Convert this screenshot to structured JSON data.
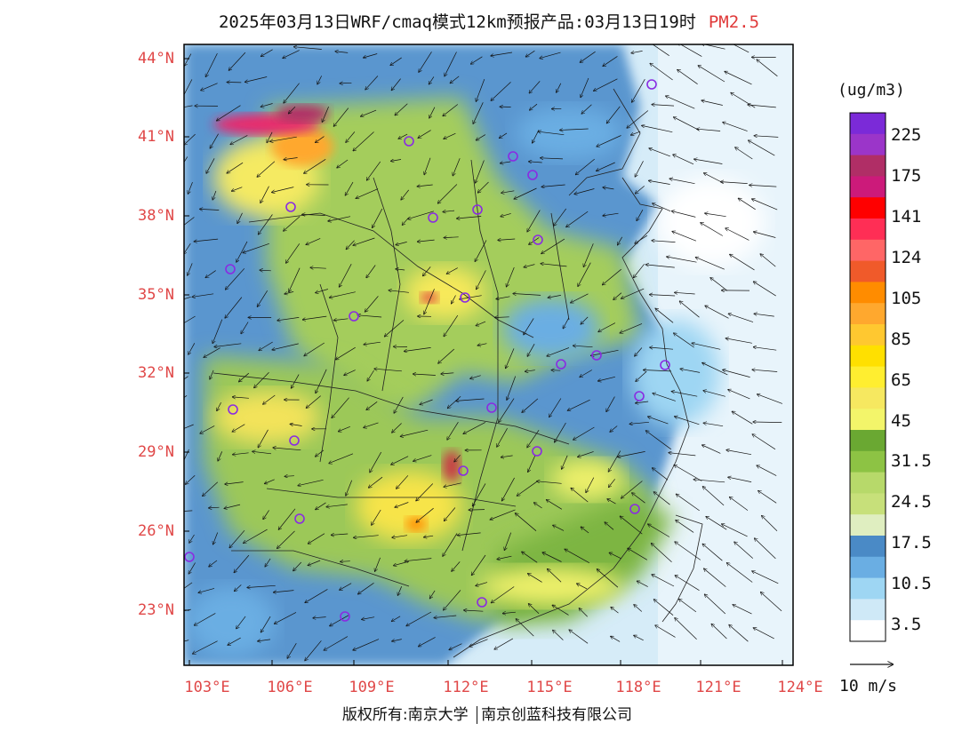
{
  "title": {
    "main": "2025年03月13日WRF/cmaq模式12km预报产品:03月13日19时",
    "pollutant": "PM2.5"
  },
  "axes": {
    "lat_labels": [
      "44°N",
      "41°N",
      "38°N",
      "35°N",
      "32°N",
      "29°N",
      "26°N",
      "23°N"
    ],
    "lon_labels": [
      "103°E",
      "106°E",
      "109°E",
      "112°E",
      "115°E",
      "118°E",
      "121°E",
      "124°E"
    ]
  },
  "colorbar": {
    "unit": "(ug/m3)",
    "labels": [
      "225",
      "175",
      "141",
      "124",
      "105",
      "85",
      "65",
      "45",
      "31.5",
      "24.5",
      "17.5",
      "10.5",
      "3.5"
    ],
    "colors": [
      "#7b2ad8",
      "#9b35c9",
      "#b02e66",
      "#cc1a7a",
      "#ff0000",
      "#ff2e55",
      "#ff6666",
      "#f05a2a",
      "#ff8c00",
      "#ffa82e",
      "#ffc830",
      "#ffe000",
      "#ffee30",
      "#f6e860",
      "#f3f56a",
      "#6aa832",
      "#8dc344",
      "#b7d96a",
      "#c7e07a",
      "#dfeec0",
      "#4a8ac6",
      "#6aaee3",
      "#9ed6f3",
      "#cfe9f7",
      "#ffffff"
    ],
    "color_ranges_low_to_high_top_to_bottom": true
  },
  "wind": {
    "reference_label": "10 m/s"
  },
  "copyright": {
    "left": "版权所有:南京大学",
    "right": "南京创蓝科技有限公司"
  }
}
